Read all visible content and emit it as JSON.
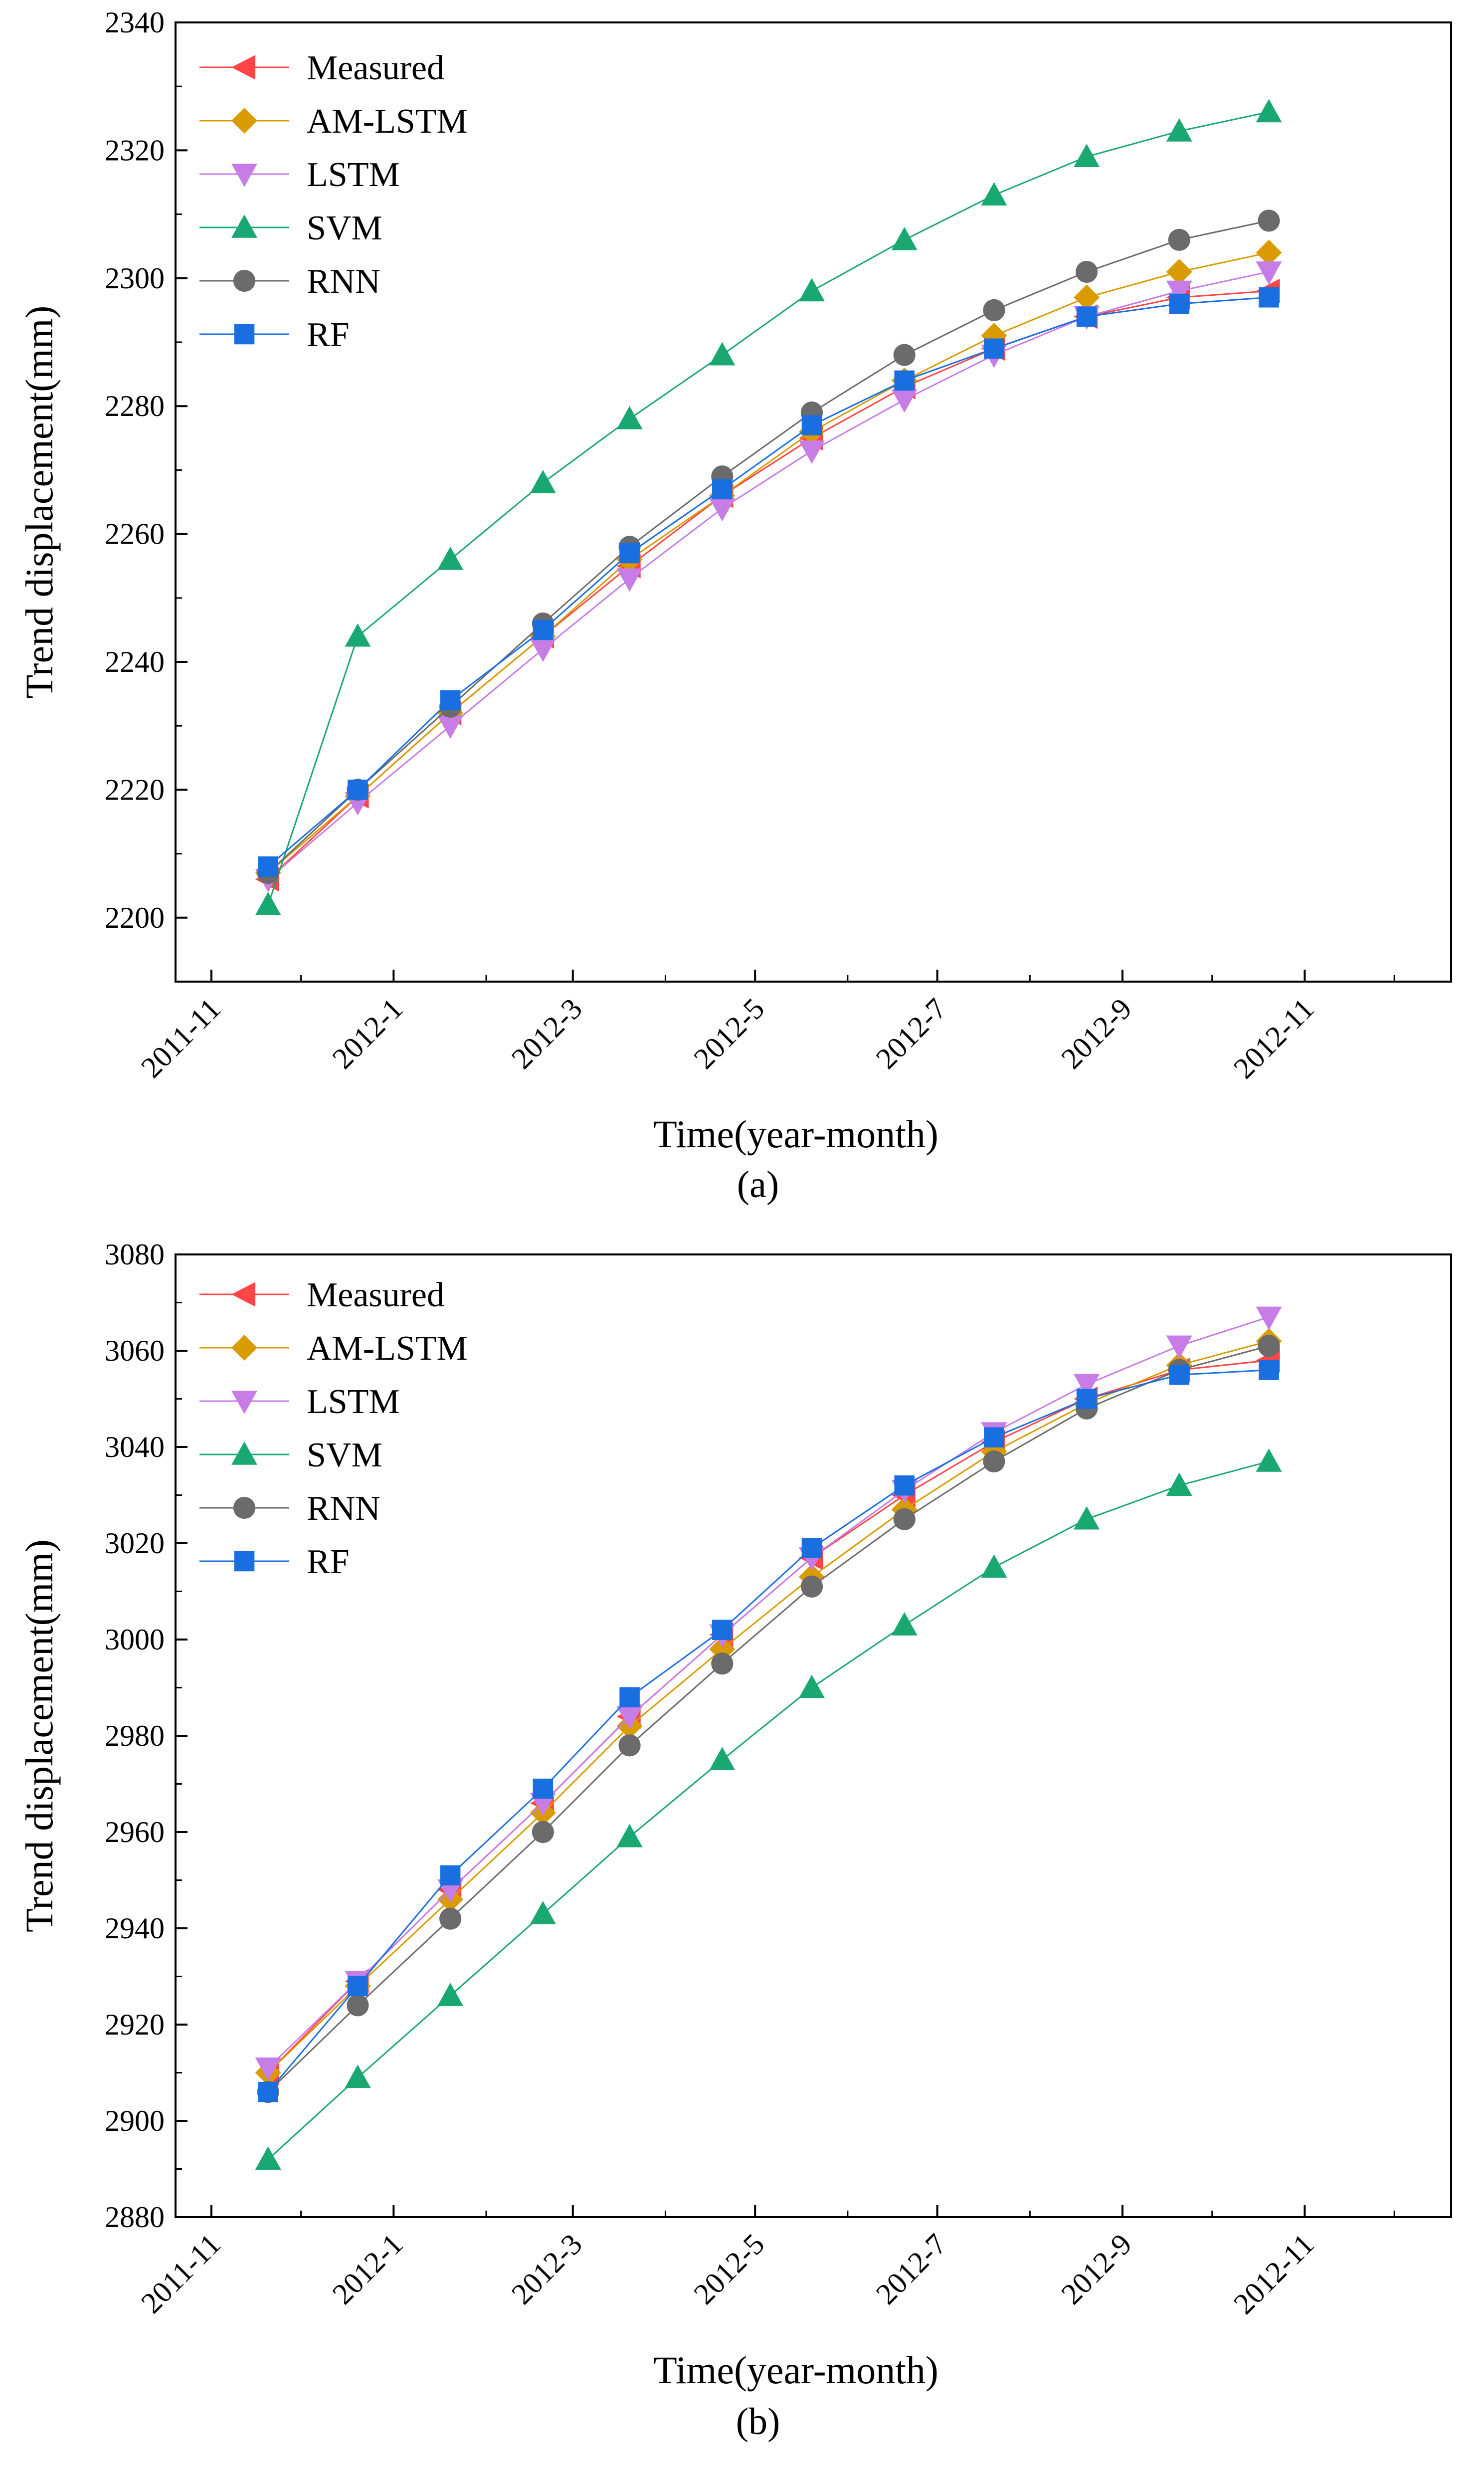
{
  "figure": {
    "panel_labels": [
      "(a)",
      "(b)"
    ]
  },
  "chart_data": [
    {
      "type": "line",
      "panel": "(a)",
      "xlabel": "Time(year-month)",
      "ylabel": "Trend displacement(mm)",
      "x": [
        "2011-11-20",
        "2011-12-20",
        "2012-01-20",
        "2012-02-20",
        "2012-03-20",
        "2012-04-20",
        "2012-05-20",
        "2012-06-20",
        "2012-07-20",
        "2012-08-20",
        "2012-09-20",
        "2012-10-20"
      ],
      "xlim": [
        "2011-10-20",
        "2012-12-20"
      ],
      "x_ticks": [
        "2011-11",
        "2012-1",
        "2012-3",
        "2012-5",
        "2012-7",
        "2012-9",
        "2012-11"
      ],
      "x_tick_dates": [
        "2011-11-01",
        "2012-01-01",
        "2012-03-01",
        "2012-05-01",
        "2012-07-01",
        "2012-09-01",
        "2012-11-01"
      ],
      "x_minor_tick_dates": [
        "2011-12-01",
        "2012-02-01",
        "2012-04-01",
        "2012-06-01",
        "2012-08-01",
        "2012-10-01",
        "2012-12-01"
      ],
      "ylim": [
        2190,
        2340
      ],
      "y_ticks": [
        2200,
        2220,
        2240,
        2260,
        2280,
        2300,
        2320,
        2340
      ],
      "grid": false,
      "legend_position": "top-left",
      "series": [
        {
          "name": "Measured",
          "color": "#ff4545",
          "marker": "triangle-left",
          "values": [
            2206,
            2219,
            2232,
            2244,
            2255,
            2266,
            2275,
            2283,
            2289,
            2294,
            2297,
            2298
          ]
        },
        {
          "name": "AM-LSTM",
          "color": "#d99b00",
          "marker": "diamond",
          "values": [
            2207,
            2219,
            2232,
            2244,
            2256,
            2266,
            2276,
            2284,
            2291,
            2297,
            2301,
            2304
          ]
        },
        {
          "name": "LSTM",
          "color": "#c77ce6",
          "marker": "triangle-down",
          "values": [
            2206,
            2218,
            2230,
            2242,
            2253,
            2264,
            2273,
            2281,
            2288,
            2294,
            2298,
            2301
          ]
        },
        {
          "name": "SVM",
          "color": "#1aa872",
          "marker": "triangle-up",
          "values": [
            2202,
            2244,
            2256,
            2268,
            2278,
            2288,
            2298,
            2306,
            2313,
            2319,
            2323,
            2326
          ]
        },
        {
          "name": "RNN",
          "color": "#6b6b6b",
          "marker": "circle",
          "values": [
            2207,
            2220,
            2233,
            2246,
            2258,
            2269,
            2279,
            2288,
            2295,
            2301,
            2306,
            2309
          ]
        },
        {
          "name": "RF",
          "color": "#1a6fe0",
          "marker": "square",
          "values": [
            2208,
            2220,
            2234,
            2245,
            2257,
            2267,
            2277,
            2284,
            2289,
            2294,
            2296,
            2297
          ]
        }
      ]
    },
    {
      "type": "line",
      "panel": "(b)",
      "xlabel": "Time(year-month)",
      "ylabel": "Trend displacement(mm)",
      "x": [
        "2011-11-20",
        "2011-12-20",
        "2012-01-20",
        "2012-02-20",
        "2012-03-20",
        "2012-04-20",
        "2012-05-20",
        "2012-06-20",
        "2012-07-20",
        "2012-08-20",
        "2012-09-20",
        "2012-10-20"
      ],
      "xlim": [
        "2011-10-20",
        "2012-12-20"
      ],
      "x_ticks": [
        "2011-11",
        "2012-1",
        "2012-3",
        "2012-5",
        "2012-7",
        "2012-9",
        "2012-11"
      ],
      "x_tick_dates": [
        "2011-11-01",
        "2012-01-01",
        "2012-03-01",
        "2012-05-01",
        "2012-07-01",
        "2012-09-01",
        "2012-11-01"
      ],
      "x_minor_tick_dates": [
        "2011-12-01",
        "2012-02-01",
        "2012-04-01",
        "2012-06-01",
        "2012-08-01",
        "2012-10-01",
        "2012-12-01"
      ],
      "ylim": [
        2880,
        3080
      ],
      "y_ticks": [
        2880,
        2900,
        2920,
        2940,
        2960,
        2980,
        3000,
        3020,
        3040,
        3060,
        3080
      ],
      "grid": false,
      "legend_position": "top-left",
      "series": [
        {
          "name": "Measured",
          "color": "#ff4545",
          "marker": "triangle-left",
          "values": [
            2910,
            2929,
            2948,
            2966,
            2984,
            3001,
            3017,
            3030,
            3041,
            3050,
            3056,
            3058
          ]
        },
        {
          "name": "AM-LSTM",
          "color": "#d99b00",
          "marker": "diamond",
          "values": [
            2910,
            2928,
            2946,
            2964,
            2982,
            2998,
            3013,
            3027,
            3039,
            3049,
            3057,
            3062
          ]
        },
        {
          "name": "LSTM",
          "color": "#c77ce6",
          "marker": "triangle-down",
          "values": [
            2911,
            2929,
            2948,
            2966,
            2984,
            3001,
            3017,
            3031,
            3043,
            3053,
            3061,
            3067
          ]
        },
        {
          "name": "SVM",
          "color": "#1aa872",
          "marker": "triangle-up",
          "values": [
            2892,
            2909,
            2926,
            2943,
            2959,
            2975,
            2990,
            3003,
            3015,
            3025,
            3032,
            3037
          ]
        },
        {
          "name": "RNN",
          "color": "#6b6b6b",
          "marker": "circle",
          "values": [
            2906,
            2924,
            2942,
            2960,
            2978,
            2995,
            3011,
            3025,
            3037,
            3048,
            3056,
            3061
          ]
        },
        {
          "name": "RF",
          "color": "#1a6fe0",
          "marker": "square",
          "values": [
            2906,
            2928,
            2951,
            2969,
            2988,
            3002,
            3019,
            3032,
            3042,
            3050,
            3055,
            3056
          ]
        }
      ]
    }
  ]
}
